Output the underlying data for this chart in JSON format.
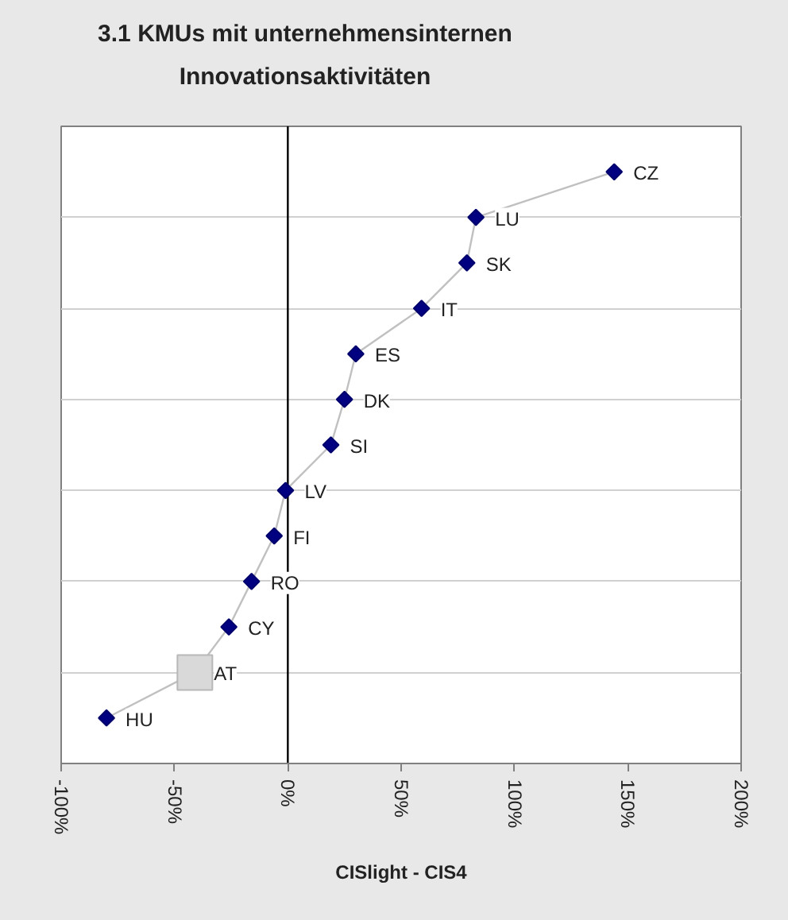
{
  "chart_data": {
    "type": "line",
    "orientation": "horizontal",
    "title": "3.1 KMUs mit unternehmensinternen Innovationsaktivitäten",
    "xlabel": "CISlight - CIS4",
    "categories": [
      "CZ",
      "LU",
      "SK",
      "IT",
      "ES",
      "DK",
      "SI",
      "LV",
      "FI",
      "RO",
      "CY",
      "AT",
      "HU"
    ],
    "series": [
      {
        "type": "line",
        "color": "#c0c0c0",
        "marker": "none",
        "values": [
          144,
          83,
          79,
          59,
          30,
          25,
          19,
          -1,
          -6,
          -16,
          -26,
          -41,
          -80
        ]
      },
      {
        "type": "scatter",
        "color": "#000080",
        "marker": "diamond",
        "values": [
          144,
          83,
          79,
          59,
          30,
          25,
          19,
          -1,
          -6,
          -16,
          -26,
          null,
          -80
        ]
      },
      {
        "type": "scatter",
        "color": "#d9d9d9",
        "marker": "square",
        "values": [
          null,
          null,
          null,
          null,
          null,
          null,
          null,
          null,
          null,
          null,
          null,
          -41,
          null
        ]
      }
    ],
    "xlim": [
      -100,
      200
    ],
    "xticks": [
      {
        "value": -100,
        "label": "-100%"
      },
      {
        "value": -50,
        "label": "-50%"
      },
      {
        "value": 0,
        "label": "0%"
      },
      {
        "value": 50,
        "label": "50%"
      },
      {
        "value": 100,
        "label": "100%"
      },
      {
        "value": 150,
        "label": "150%"
      },
      {
        "value": 200,
        "label": "200%"
      }
    ],
    "tick_labels": "x",
    "grid": "y",
    "ref_lines": [
      {
        "axis": "x",
        "value": 0,
        "color": "#000000"
      }
    ]
  }
}
